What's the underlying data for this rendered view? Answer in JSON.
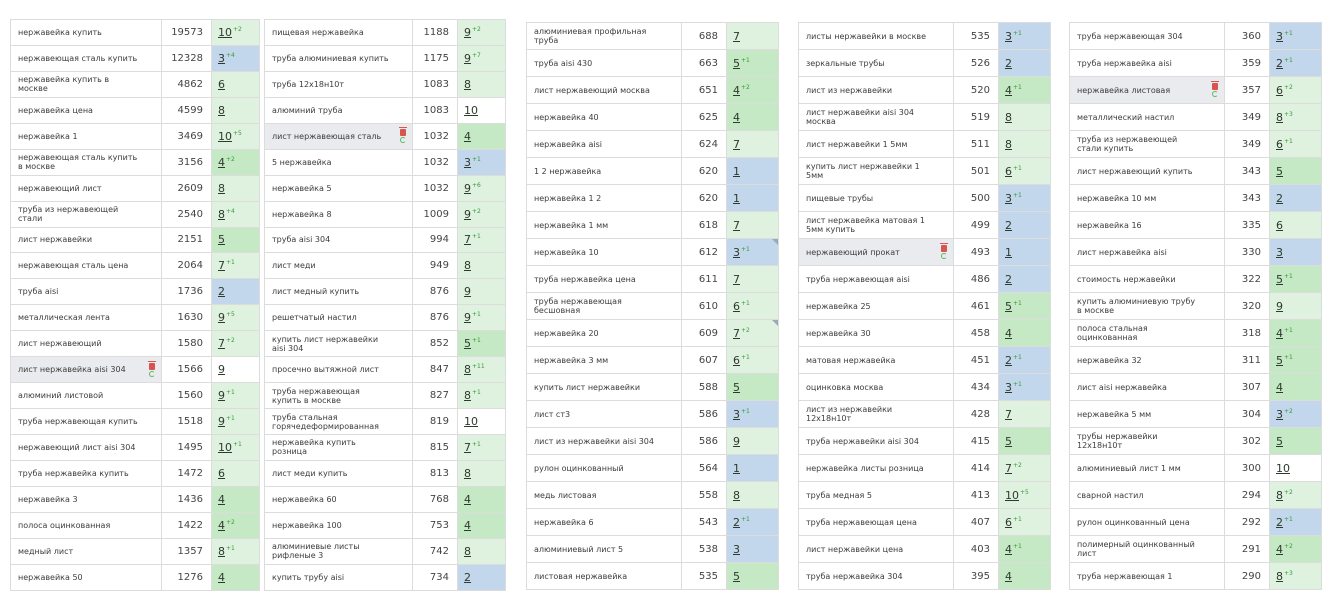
{
  "tables": [
    {
      "rows": [
        {
          "kw": "нержавейка купить",
          "vol": "19573",
          "pos": "10",
          "delta": "+2",
          "dir": "up",
          "color": "lgreen"
        },
        {
          "kw": "нержавеющая сталь купить",
          "vol": "12328",
          "pos": "3",
          "delta": "+4",
          "dir": "up",
          "color": "blue"
        },
        {
          "kw": "нержавейка купить в москве",
          "vol": "4862",
          "pos": "6",
          "delta": "",
          "dir": "",
          "color": "lgreen"
        },
        {
          "kw": "нержавейка цена",
          "vol": "4599",
          "pos": "8",
          "delta": "",
          "dir": "",
          "color": "lgreen"
        },
        {
          "kw": "нержавейка 1",
          "vol": "3469",
          "pos": "10",
          "delta": "+5",
          "dir": "up",
          "color": "lgreen"
        },
        {
          "kw": "нержавеющая сталь купить в москве",
          "vol": "3156",
          "pos": "4",
          "delta": "+2",
          "dir": "up",
          "color": "green"
        },
        {
          "kw": "нержавеющий лист",
          "vol": "2609",
          "pos": "8",
          "delta": "",
          "dir": "",
          "color": "lgreen"
        },
        {
          "kw": "труба из нержавеющей стали",
          "vol": "2540",
          "pos": "8",
          "delta": "+4",
          "dir": "up",
          "color": "lgreen"
        },
        {
          "kw": "лист нержавейки",
          "vol": "2151",
          "pos": "5",
          "delta": "",
          "dir": "",
          "color": "green"
        },
        {
          "kw": "нержавеющая сталь цена",
          "vol": "2064",
          "pos": "7",
          "delta": "+1",
          "dir": "up",
          "color": "lgreen"
        },
        {
          "kw": "труба aisi",
          "vol": "1736",
          "pos": "2",
          "delta": "",
          "dir": "",
          "color": "blue"
        },
        {
          "kw": "металлическая лента",
          "vol": "1630",
          "pos": "9",
          "delta": "+5",
          "dir": "up",
          "color": "lgreen"
        },
        {
          "kw": "лист нержавеющий",
          "vol": "1580",
          "pos": "7",
          "delta": "+2",
          "dir": "up",
          "color": "lgreen"
        },
        {
          "kw": "лист нержавейка aisi 304",
          "vol": "1566",
          "pos": "9",
          "delta": "",
          "dir": "",
          "color": "white",
          "hl": true
        },
        {
          "kw": "алюминий листовой",
          "vol": "1560",
          "pos": "9",
          "delta": "+1",
          "dir": "up",
          "color": "lgreen"
        },
        {
          "kw": "труба нержавеющая купить",
          "vol": "1518",
          "pos": "9",
          "delta": "+1",
          "dir": "up",
          "color": "lgreen"
        },
        {
          "kw": "нержавеющий лист aisi 304",
          "vol": "1495",
          "pos": "10",
          "delta": "+1",
          "dir": "up",
          "color": "lgreen"
        },
        {
          "kw": "труба нержавейка купить",
          "vol": "1472",
          "pos": "6",
          "delta": "",
          "dir": "",
          "color": "lgreen"
        },
        {
          "kw": "нержавейка 3",
          "vol": "1436",
          "pos": "4",
          "delta": "",
          "dir": "",
          "color": "green"
        },
        {
          "kw": "полоса оцинкованная",
          "vol": "1422",
          "pos": "4",
          "delta": "+2",
          "dir": "up",
          "color": "green"
        },
        {
          "kw": "медный лист",
          "vol": "1357",
          "pos": "8",
          "delta": "+1",
          "dir": "up",
          "color": "lgreen"
        },
        {
          "kw": "нержавейка 50",
          "vol": "1276",
          "pos": "4",
          "delta": "",
          "dir": "",
          "color": "green"
        }
      ]
    },
    {
      "rows": [
        {
          "kw": "пищевая нержавейка",
          "vol": "1188",
          "pos": "9",
          "delta": "+2",
          "dir": "up",
          "color": "lgreen"
        },
        {
          "kw": "труба алюминиевая купить",
          "vol": "1175",
          "pos": "9",
          "delta": "+7",
          "dir": "up",
          "color": "lgreen"
        },
        {
          "kw": "труба 12х18н10т",
          "vol": "1083",
          "pos": "8",
          "delta": "",
          "dir": "",
          "color": "lgreen"
        },
        {
          "kw": "алюминий труба",
          "vol": "1083",
          "pos": "10",
          "delta": "",
          "dir": "",
          "color": "white"
        },
        {
          "kw": "лист нержавеющая сталь",
          "vol": "1032",
          "pos": "4",
          "delta": "",
          "dir": "",
          "color": "green",
          "hl": true
        },
        {
          "kw": "5 нержавейка",
          "vol": "1032",
          "pos": "3",
          "delta": "+1",
          "dir": "up",
          "color": "blue"
        },
        {
          "kw": "нержавейка 5",
          "vol": "1032",
          "pos": "9",
          "delta": "+6",
          "dir": "up",
          "color": "lgreen"
        },
        {
          "kw": "нержавейка 8",
          "vol": "1009",
          "pos": "9",
          "delta": "+2",
          "dir": "up",
          "color": "lgreen"
        },
        {
          "kw": "труба aisi 304",
          "vol": "994",
          "pos": "7",
          "delta": "+1",
          "dir": "up",
          "color": "lgreen"
        },
        {
          "kw": "лист меди",
          "vol": "949",
          "pos": "8",
          "delta": "",
          "dir": "",
          "color": "lgreen"
        },
        {
          "kw": "лист медный купить",
          "vol": "876",
          "pos": "9",
          "delta": "",
          "dir": "",
          "color": "lgreen"
        },
        {
          "kw": "решетчатый настил",
          "vol": "876",
          "pos": "9",
          "delta": "+1",
          "dir": "up",
          "color": "lgreen"
        },
        {
          "kw": "купить лист нержавейки aisi 304",
          "vol": "852",
          "pos": "5",
          "delta": "+1",
          "dir": "up",
          "color": "green"
        },
        {
          "kw": "просечно вытяжной лист",
          "vol": "847",
          "pos": "8",
          "delta": "+11",
          "dir": "up",
          "color": "lgreen"
        },
        {
          "kw": "труба нержавеющая купить в москве",
          "vol": "827",
          "pos": "8",
          "delta": "+1",
          "dir": "up",
          "color": "lgreen"
        },
        {
          "kw": "труба стальная горячедеформированная",
          "vol": "819",
          "pos": "10",
          "delta": "",
          "dir": "",
          "color": "white"
        },
        {
          "kw": "нержавейка купить розница",
          "vol": "815",
          "pos": "7",
          "delta": "+1",
          "dir": "up",
          "color": "lgreen"
        },
        {
          "kw": "лист меди купить",
          "vol": "813",
          "pos": "8",
          "delta": "",
          "dir": "",
          "color": "lgreen"
        },
        {
          "kw": "нержавейка 60",
          "vol": "768",
          "pos": "4",
          "delta": "",
          "dir": "",
          "color": "green"
        },
        {
          "kw": "нержавейка 100",
          "vol": "753",
          "pos": "4",
          "delta": "",
          "dir": "",
          "color": "green"
        },
        {
          "kw": "алюминиевые листы рифленые 3",
          "vol": "742",
          "pos": "8",
          "delta": "",
          "dir": "",
          "color": "lgreen"
        },
        {
          "kw": "купить трубу aisi",
          "vol": "734",
          "pos": "2",
          "delta": "",
          "dir": "",
          "color": "blue"
        }
      ]
    },
    {
      "rows": [
        {
          "kw": "алюминиевая профильная труба",
          "vol": "688",
          "pos": "7",
          "delta": "",
          "dir": "",
          "color": "lgreen"
        },
        {
          "kw": "труба aisi 430",
          "vol": "663",
          "pos": "5",
          "delta": "+1",
          "dir": "up",
          "color": "green"
        },
        {
          "kw": "лист нержавеющий москва",
          "vol": "651",
          "pos": "4",
          "delta": "+2",
          "dir": "up",
          "color": "green"
        },
        {
          "kw": "нержавейка 40",
          "vol": "625",
          "pos": "4",
          "delta": "",
          "dir": "",
          "color": "green"
        },
        {
          "kw": "нержавейка aisi",
          "vol": "624",
          "pos": "7",
          "delta": "",
          "dir": "",
          "color": "lgreen"
        },
        {
          "kw": "1 2 нержавейка",
          "vol": "620",
          "pos": "1",
          "delta": "",
          "dir": "",
          "color": "blue"
        },
        {
          "kw": "нержавейка 1 2",
          "vol": "620",
          "pos": "1",
          "delta": "",
          "dir": "",
          "color": "blue"
        },
        {
          "kw": "нержавейка 1 мм",
          "vol": "618",
          "pos": "7",
          "delta": "",
          "dir": "",
          "color": "lgreen"
        },
        {
          "kw": "нержавейка 10",
          "vol": "612",
          "pos": "3",
          "delta": "+1",
          "dir": "up",
          "color": "blue",
          "corner": true
        },
        {
          "kw": "труба нержавейка цена",
          "vol": "611",
          "pos": "7",
          "delta": "",
          "dir": "",
          "color": "lgreen"
        },
        {
          "kw": "труба нержавеющая бесшовная",
          "vol": "610",
          "pos": "6",
          "delta": "+1",
          "dir": "up",
          "color": "lgreen"
        },
        {
          "kw": "нержавейка 20",
          "vol": "609",
          "pos": "7",
          "delta": "+2",
          "dir": "up",
          "color": "lgreen",
          "corner": true
        },
        {
          "kw": "нержавейка 3 мм",
          "vol": "607",
          "pos": "6",
          "delta": "+1",
          "dir": "up",
          "color": "lgreen"
        },
        {
          "kw": "купить лист нержавейки",
          "vol": "588",
          "pos": "5",
          "delta": "",
          "dir": "",
          "color": "green"
        },
        {
          "kw": "лист ст3",
          "vol": "586",
          "pos": "3",
          "delta": "+1",
          "dir": "up",
          "color": "blue"
        },
        {
          "kw": "лист из нержавейки aisi 304",
          "vol": "586",
          "pos": "9",
          "delta": "",
          "dir": "",
          "color": "lgreen"
        },
        {
          "kw": "рулон оцинкованный",
          "vol": "564",
          "pos": "1",
          "delta": "",
          "dir": "",
          "color": "blue"
        },
        {
          "kw": "медь листовая",
          "vol": "558",
          "pos": "8",
          "delta": "",
          "dir": "",
          "color": "lgreen"
        },
        {
          "kw": "нержавейка 6",
          "vol": "543",
          "pos": "2",
          "delta": "+1",
          "dir": "up",
          "color": "blue"
        },
        {
          "kw": "алюминиевый лист 5",
          "vol": "538",
          "pos": "3",
          "delta": "",
          "dir": "",
          "color": "blue"
        },
        {
          "kw": "листовая нержавейка",
          "vol": "535",
          "pos": "5",
          "delta": "",
          "dir": "",
          "color": "green"
        }
      ]
    },
    {
      "rows": [
        {
          "kw": "листы нержавейки в москве",
          "vol": "535",
          "pos": "3",
          "delta": "+1",
          "dir": "up",
          "color": "blue"
        },
        {
          "kw": "зеркальные трубы",
          "vol": "526",
          "pos": "2",
          "delta": "",
          "dir": "",
          "color": "blue"
        },
        {
          "kw": "лист из нержавейки",
          "vol": "520",
          "pos": "4",
          "delta": "+1",
          "dir": "up",
          "color": "green"
        },
        {
          "kw": "лист нержавейки aisi 304 москва",
          "vol": "519",
          "pos": "8",
          "delta": "",
          "dir": "",
          "color": "lgreen"
        },
        {
          "kw": "лист нержавейки 1 5мм",
          "vol": "511",
          "pos": "8",
          "delta": "",
          "dir": "",
          "color": "lgreen"
        },
        {
          "kw": "купить лист нержавейки 1 5мм",
          "vol": "501",
          "pos": "6",
          "delta": "+1",
          "dir": "up",
          "color": "lgreen"
        },
        {
          "kw": "пищевые трубы",
          "vol": "500",
          "pos": "3",
          "delta": "+1",
          "dir": "up",
          "color": "blue"
        },
        {
          "kw": "лист нержавейка матовая 1 5мм купить",
          "vol": "499",
          "pos": "2",
          "delta": "",
          "dir": "",
          "color": "blue"
        },
        {
          "kw": "нержавеющий прокат",
          "vol": "493",
          "pos": "1",
          "delta": "",
          "dir": "",
          "color": "blue",
          "hl": true
        },
        {
          "kw": "труба нержавеющая aisi",
          "vol": "486",
          "pos": "2",
          "delta": "",
          "dir": "",
          "color": "blue"
        },
        {
          "kw": "нержавейка 25",
          "vol": "461",
          "pos": "5",
          "delta": "+1",
          "dir": "up",
          "color": "green"
        },
        {
          "kw": "нержавейка 30",
          "vol": "458",
          "pos": "4",
          "delta": "",
          "dir": "",
          "color": "green"
        },
        {
          "kw": "матовая нержавейка",
          "vol": "451",
          "pos": "2",
          "delta": "+1",
          "dir": "up",
          "color": "blue"
        },
        {
          "kw": "оцинковка москва",
          "vol": "434",
          "pos": "3",
          "delta": "+1",
          "dir": "up",
          "color": "blue"
        },
        {
          "kw": "лист из нержавейки 12х18н10т",
          "vol": "428",
          "pos": "7",
          "delta": "",
          "dir": "",
          "color": "lgreen"
        },
        {
          "kw": "труба нержавейки aisi 304",
          "vol": "415",
          "pos": "5",
          "delta": "",
          "dir": "",
          "color": "green"
        },
        {
          "kw": "нержавейка листы розница",
          "vol": "414",
          "pos": "7",
          "delta": "+2",
          "dir": "up",
          "color": "lgreen"
        },
        {
          "kw": "труба медная 5",
          "vol": "413",
          "pos": "10",
          "delta": "+5",
          "dir": "up",
          "color": "lgreen"
        },
        {
          "kw": "труба нержавеющая цена",
          "vol": "407",
          "pos": "6",
          "delta": "+1",
          "dir": "up",
          "color": "lgreen"
        },
        {
          "kw": "лист нержавейки цена",
          "vol": "403",
          "pos": "4",
          "delta": "+1",
          "dir": "up",
          "color": "green"
        },
        {
          "kw": "труба нержавейка 304",
          "vol": "395",
          "pos": "4",
          "delta": "",
          "dir": "",
          "color": "green"
        }
      ]
    },
    {
      "rows": [
        {
          "kw": "труба нержавеющая 304",
          "vol": "360",
          "pos": "3",
          "delta": "+1",
          "dir": "up",
          "color": "blue"
        },
        {
          "kw": "труба нержавейка aisi",
          "vol": "359",
          "pos": "2",
          "delta": "+1",
          "dir": "up",
          "color": "blue"
        },
        {
          "kw": "нержавейка листовая",
          "vol": "357",
          "pos": "6",
          "delta": "+2",
          "dir": "up",
          "color": "lgreen",
          "hl": true
        },
        {
          "kw": "металлический настил",
          "vol": "349",
          "pos": "8",
          "delta": "+3",
          "dir": "up",
          "color": "lgreen"
        },
        {
          "kw": "труба из нержавеющей стали купить",
          "vol": "349",
          "pos": "6",
          "delta": "+1",
          "dir": "up",
          "color": "lgreen"
        },
        {
          "kw": "лист нержавеющий купить",
          "vol": "343",
          "pos": "5",
          "delta": "",
          "dir": "",
          "color": "green"
        },
        {
          "kw": "нержавейка 10 мм",
          "vol": "343",
          "pos": "2",
          "delta": "",
          "dir": "",
          "color": "blue"
        },
        {
          "kw": "нержавейка 16",
          "vol": "335",
          "pos": "6",
          "delta": "",
          "dir": "",
          "color": "lgreen"
        },
        {
          "kw": "лист нержавейка aisi",
          "vol": "330",
          "pos": "3",
          "delta": "",
          "dir": "",
          "color": "blue"
        },
        {
          "kw": "стоимость нержавейки",
          "vol": "322",
          "pos": "5",
          "delta": "+1",
          "dir": "up",
          "color": "green"
        },
        {
          "kw": "купить алюминиевую трубу в москве",
          "vol": "320",
          "pos": "9",
          "delta": "",
          "dir": "",
          "color": "lgreen"
        },
        {
          "kw": "полоса стальная оцинкованная",
          "vol": "318",
          "pos": "4",
          "delta": "+1",
          "dir": "up",
          "color": "green"
        },
        {
          "kw": "нержавейка 32",
          "vol": "311",
          "pos": "5",
          "delta": "+1",
          "dir": "up",
          "color": "green"
        },
        {
          "kw": "лист aisi нержавейка",
          "vol": "307",
          "pos": "4",
          "delta": "",
          "dir": "",
          "color": "green"
        },
        {
          "kw": "нержавейка 5 мм",
          "vol": "304",
          "pos": "3",
          "delta": "+2",
          "dir": "up",
          "color": "blue"
        },
        {
          "kw": "трубы нержавейки 12х18н10т",
          "vol": "302",
          "pos": "5",
          "delta": "",
          "dir": "",
          "color": "green"
        },
        {
          "kw": "алюминиевый лист 1 мм",
          "vol": "300",
          "pos": "10",
          "delta": "",
          "dir": "",
          "color": "white"
        },
        {
          "kw": "сварной настил",
          "vol": "294",
          "pos": "8",
          "delta": "+2",
          "dir": "up",
          "color": "lgreen"
        },
        {
          "kw": "рулон оцинкованный цена",
          "vol": "292",
          "pos": "2",
          "delta": "+1",
          "dir": "up",
          "color": "blue"
        },
        {
          "kw": "полимерный оцинкованный лист",
          "vol": "291",
          "pos": "4",
          "delta": "+2",
          "dir": "up",
          "color": "green"
        },
        {
          "kw": "труба нержавеющая 1",
          "vol": "290",
          "pos": "8",
          "delta": "+3",
          "dir": "up",
          "color": "lgreen"
        }
      ]
    }
  ],
  "colors": {
    "green": "#c5e8c5",
    "lgreen": "#dff2df",
    "blue": "#c2d6ec",
    "border": "#dcdcdc",
    "trash": "#d9534f",
    "refresh": "#5cb85c"
  }
}
